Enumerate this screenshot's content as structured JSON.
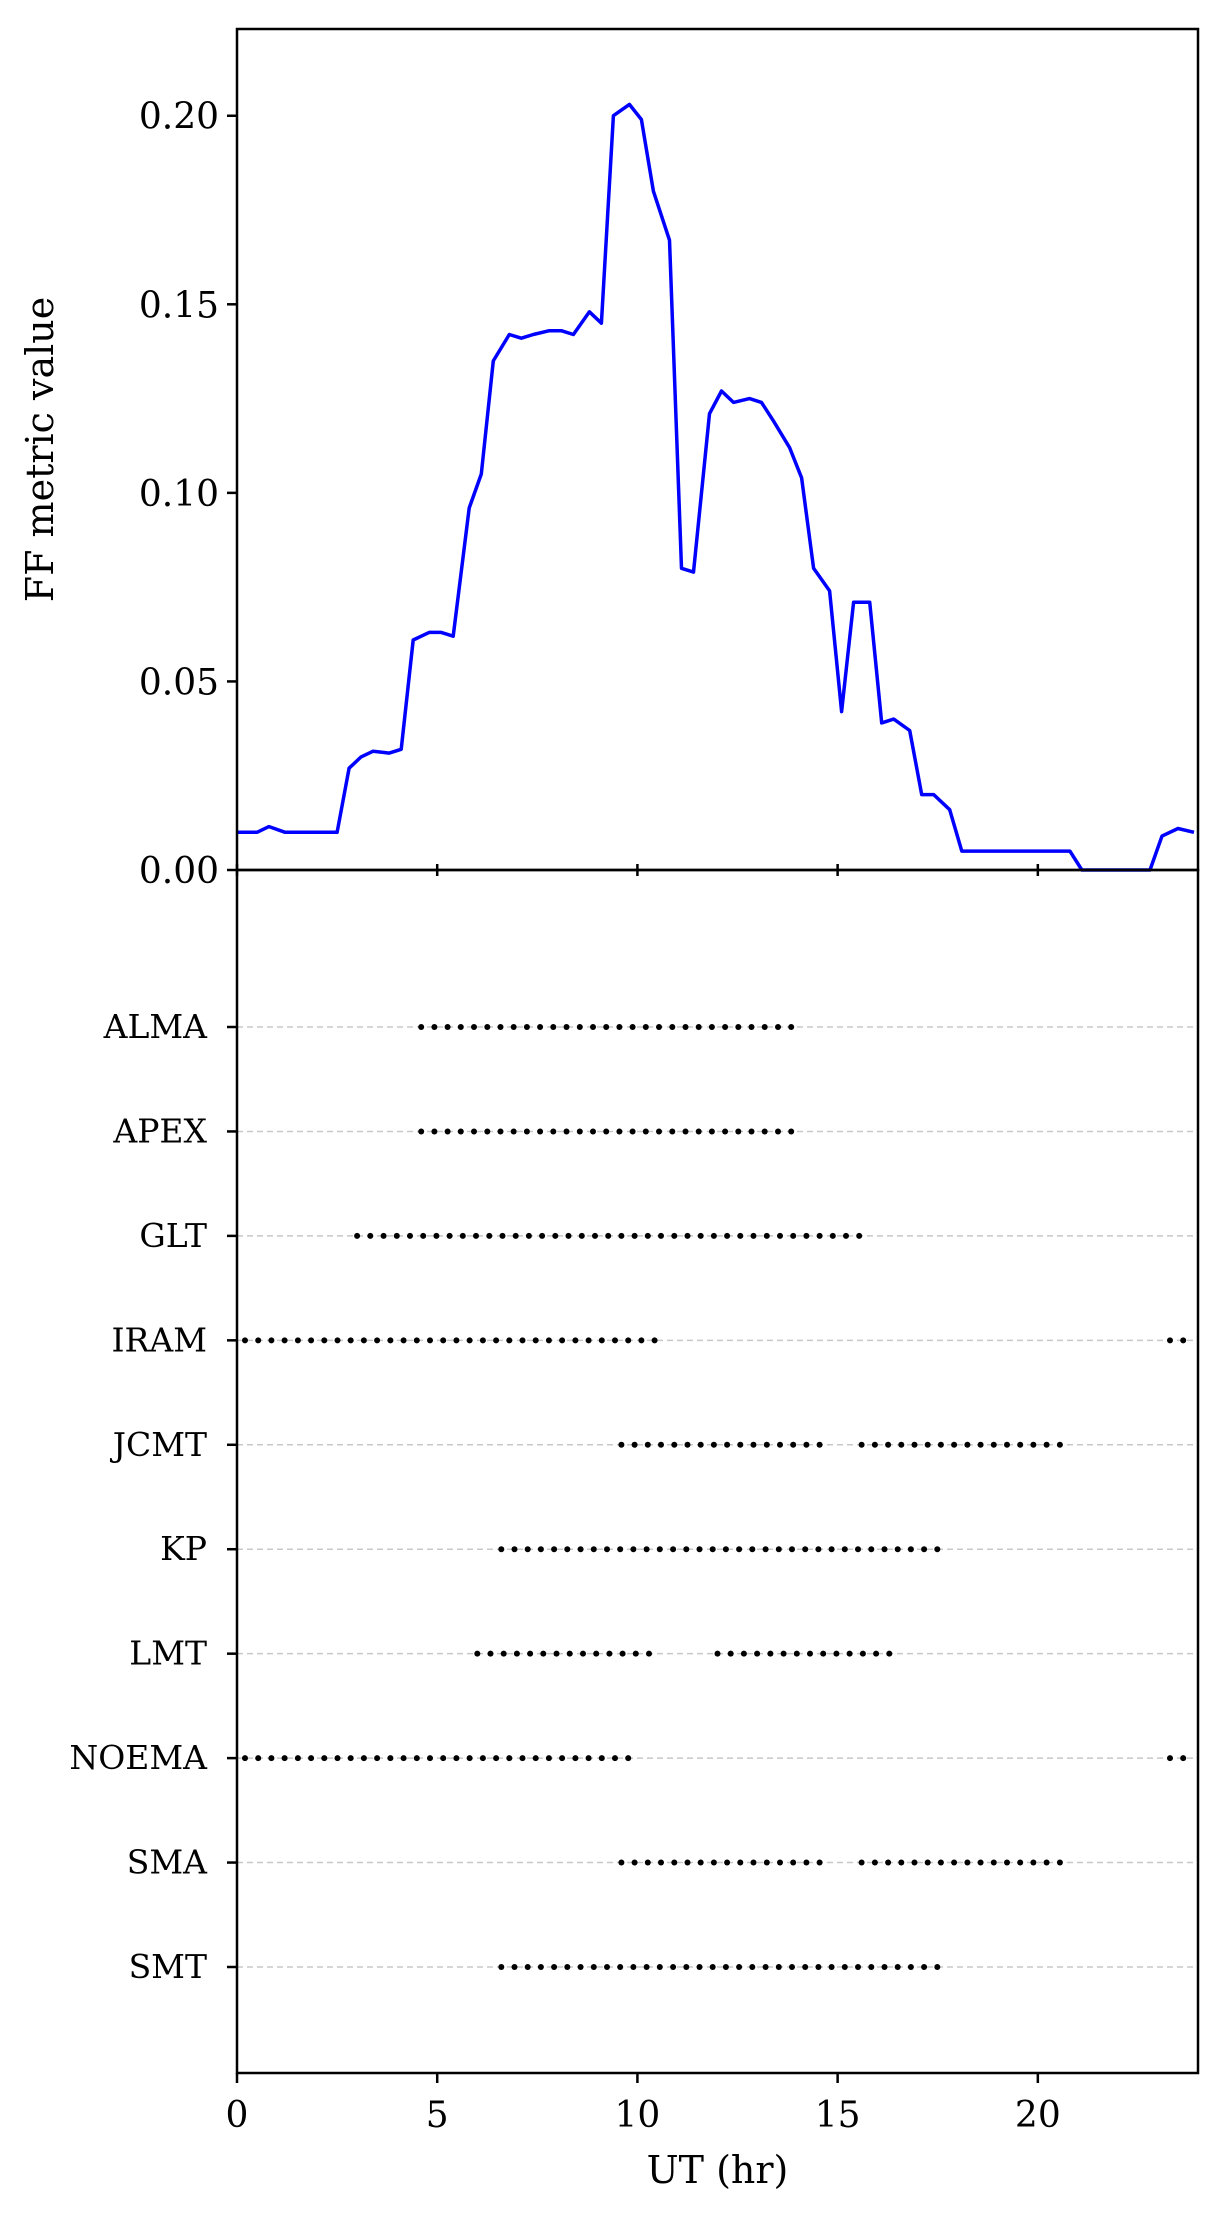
{
  "chart_data": [
    {
      "type": "line",
      "ylabel": "FF metric value",
      "xlim": [
        0,
        24
      ],
      "ylim": [
        0,
        0.223
      ],
      "yticks": [
        0.0,
        0.05,
        0.1,
        0.15,
        0.2
      ],
      "ytick_labels": [
        "0.00",
        "0.05",
        "0.10",
        "0.15",
        "0.20"
      ],
      "grid": false,
      "series": [
        {
          "color": "#0000ff",
          "x": [
            0,
            0.5,
            0.8,
            1.2,
            2.0,
            2.5,
            2.8,
            3.1,
            3.4,
            3.8,
            4.1,
            4.4,
            4.8,
            5.1,
            5.4,
            5.8,
            6.1,
            6.4,
            6.8,
            7.1,
            7.4,
            7.8,
            8.1,
            8.4,
            8.8,
            9.1,
            9.4,
            9.8,
            10.1,
            10.4,
            10.8,
            11.1,
            11.4,
            11.8,
            12.1,
            12.4,
            12.8,
            13.1,
            13.4,
            13.8,
            14.1,
            14.4,
            14.8,
            15.1,
            15.4,
            15.8,
            16.1,
            16.4,
            16.8,
            17.1,
            17.4,
            17.8,
            18.1,
            18.4,
            20.8,
            21.1,
            21.5,
            22.8,
            23.1,
            23.5,
            23.9
          ],
          "y": [
            0.01,
            0.01,
            0.0115,
            0.01,
            0.01,
            0.01,
            0.027,
            0.03,
            0.0315,
            0.031,
            0.032,
            0.061,
            0.063,
            0.063,
            0.062,
            0.096,
            0.105,
            0.135,
            0.142,
            0.141,
            0.142,
            0.143,
            0.143,
            0.142,
            0.148,
            0.145,
            0.2,
            0.203,
            0.199,
            0.18,
            0.167,
            0.08,
            0.079,
            0.121,
            0.127,
            0.124,
            0.125,
            0.124,
            0.119,
            0.112,
            0.104,
            0.08,
            0.074,
            0.042,
            0.071,
            0.071,
            0.039,
            0.04,
            0.037,
            0.02,
            0.02,
            0.016,
            0.005,
            0.005,
            0.005,
            0.0,
            0.0,
            0.0,
            0.009,
            0.011,
            0.01
          ]
        }
      ]
    },
    {
      "type": "scatter",
      "xlabel": "UT (hr)",
      "xlim": [
        0,
        24
      ],
      "xticks": [
        0,
        5,
        10,
        15,
        20
      ],
      "xtick_labels": [
        "0",
        "5",
        "10",
        "15",
        "20"
      ],
      "grid": "horizontal dashed",
      "marker_spacing_hr": 0.33,
      "stations": [
        {
          "name": "ALMA",
          "segments": [
            [
              4.6,
              14.0
            ]
          ]
        },
        {
          "name": "APEX",
          "segments": [
            [
              4.6,
              14.0
            ]
          ]
        },
        {
          "name": "GLT",
          "segments": [
            [
              3.0,
              15.7
            ]
          ]
        },
        {
          "name": "IRAM",
          "segments": [
            [
              0.2,
              10.6
            ],
            [
              23.3,
              23.7
            ]
          ]
        },
        {
          "name": "JCMT",
          "segments": [
            [
              9.6,
              14.6
            ],
            [
              15.6,
              20.6
            ]
          ]
        },
        {
          "name": "KP",
          "segments": [
            [
              6.6,
              17.6
            ]
          ]
        },
        {
          "name": "LMT",
          "segments": [
            [
              6.0,
              10.6
            ],
            [
              12.0,
              16.6
            ]
          ]
        },
        {
          "name": "NOEMA",
          "segments": [
            [
              0.2,
              10.0
            ],
            [
              23.3,
              23.7
            ]
          ]
        },
        {
          "name": "SMA",
          "segments": [
            [
              9.6,
              14.6
            ],
            [
              15.6,
              20.6
            ]
          ]
        },
        {
          "name": "SMT",
          "segments": [
            [
              6.6,
              17.6
            ]
          ]
        }
      ]
    }
  ]
}
